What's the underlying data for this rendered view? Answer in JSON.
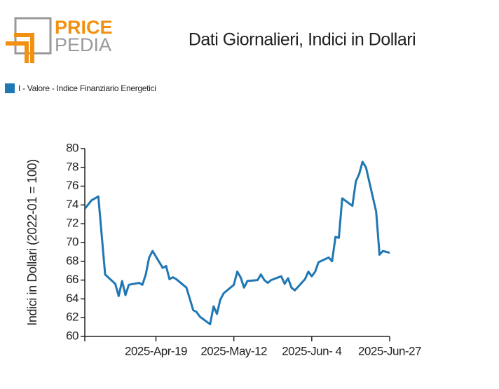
{
  "logo": {
    "top": "PRICE",
    "bottom": "PEDIA"
  },
  "chart_data": {
    "type": "line",
    "title": "Dati Giornalieri, Indici in Dollari",
    "y_label": "Indici in Dollari (2022-01 = 100)",
    "x": [
      "2025-03-29",
      "2025-03-31",
      "2025-04-02",
      "2025-04-04",
      "2025-04-07",
      "2025-04-08",
      "2025-04-09",
      "2025-04-10",
      "2025-04-11",
      "2025-04-14",
      "2025-04-15",
      "2025-04-16",
      "2025-04-17",
      "2025-04-18",
      "2025-04-21",
      "2025-04-22",
      "2025-04-23",
      "2025-04-24",
      "2025-04-25",
      "2025-04-28",
      "2025-04-30",
      "2025-05-01",
      "2025-05-02",
      "2025-05-05",
      "2025-05-06",
      "2025-05-07",
      "2025-05-08",
      "2025-05-09",
      "2025-05-12",
      "2025-05-13",
      "2025-05-14",
      "2025-05-15",
      "2025-05-16",
      "2025-05-19",
      "2025-05-20",
      "2025-05-21",
      "2025-05-22",
      "2025-05-23",
      "2025-05-26",
      "2025-05-27",
      "2025-05-28",
      "2025-05-29",
      "2025-05-30",
      "2025-06-02",
      "2025-06-03",
      "2025-06-04",
      "2025-06-05",
      "2025-06-06",
      "2025-06-09",
      "2025-06-10",
      "2025-06-11",
      "2025-06-12",
      "2025-06-13",
      "2025-06-16",
      "2025-06-17",
      "2025-06-18",
      "2025-06-19",
      "2025-06-20",
      "2025-06-23",
      "2025-06-24",
      "2025-06-25",
      "2025-06-27"
    ],
    "series": [
      {
        "name": "I - Valore - Indice Finanziario Energetici",
        "color": "#1f77b4",
        "values": [
          73.6,
          74.5,
          74.9,
          66.6,
          65.6,
          64.3,
          65.9,
          64.4,
          65.5,
          65.7,
          65.5,
          66.6,
          68.4,
          69.1,
          67.3,
          67.5,
          66.1,
          66.3,
          66.1,
          65.2,
          62.8,
          62.6,
          62.1,
          61.3,
          63.2,
          62.4,
          63.9,
          64.6,
          65.5,
          66.9,
          66.3,
          65.2,
          65.9,
          66.0,
          66.6,
          66.0,
          65.7,
          66.0,
          66.4,
          65.6,
          66.2,
          65.2,
          64.9,
          66.1,
          66.9,
          66.4,
          66.9,
          67.9,
          68.4,
          68.0,
          70.6,
          70.5,
          74.7,
          73.9,
          76.5,
          77.3,
          78.6,
          78.0,
          73.3,
          68.7,
          69.1,
          68.9
        ]
      }
    ],
    "xlim": [
      "2025-03-29",
      "2025-06-27"
    ],
    "xticks": [
      {
        "value": "2025-04-19",
        "label": "2025-Apr-19"
      },
      {
        "value": "2025-05-12",
        "label": "2025-May-12"
      },
      {
        "value": "2025-06-04",
        "label": "2025-Jun- 4"
      },
      {
        "value": "2025-06-27",
        "label": "2025-Jun-27"
      }
    ],
    "ylim": [
      60,
      80
    ],
    "yticks": [
      60,
      62,
      64,
      66,
      68,
      70,
      72,
      74,
      76,
      78,
      80
    ],
    "legend": "top-left"
  }
}
